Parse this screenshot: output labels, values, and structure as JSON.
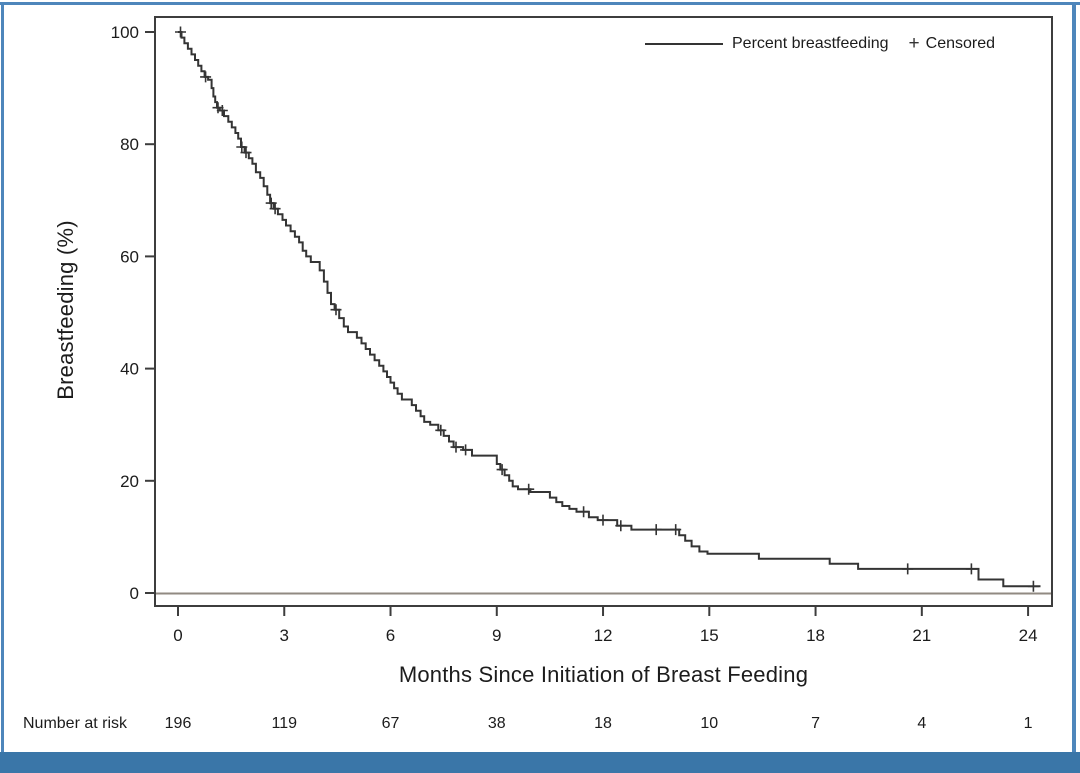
{
  "frame": {
    "border_color": "#4e86bb",
    "bottom_bar_color": "#3a76a8",
    "background": "#ffffff"
  },
  "chart_data": {
    "type": "line",
    "subtype": "kaplan-meier-step-curve",
    "title": "",
    "xlabel": "Months Since Initiation of Breast Feeding",
    "ylabel": "Breastfeeding (%)",
    "x_ticks": [
      0,
      3,
      6,
      9,
      12,
      15,
      18,
      21,
      24
    ],
    "y_ticks": [
      0,
      20,
      40,
      60,
      80,
      100
    ],
    "xlim": [
      -0.65,
      25.2
    ],
    "ylim": [
      -2.5,
      102.5
    ],
    "grid": false,
    "legend_position": "top-right-inside",
    "legend": {
      "series_label": "Percent breastfeeding",
      "censored_label": "Censored"
    },
    "line_color": "#343434",
    "axis_color": "#3d3d3d",
    "baseline": {
      "y": 0,
      "color": "#918a82"
    },
    "series": [
      {
        "name": "Percent breastfeeding",
        "step_points": [
          [
            0,
            100
          ],
          [
            0.1,
            99
          ],
          [
            0.18,
            98
          ],
          [
            0.28,
            97
          ],
          [
            0.38,
            96
          ],
          [
            0.48,
            95
          ],
          [
            0.57,
            94
          ],
          [
            0.66,
            93
          ],
          [
            0.75,
            92
          ],
          [
            0.85,
            91.5
          ],
          [
            0.95,
            90
          ],
          [
            1.0,
            88.5
          ],
          [
            1.05,
            87.5
          ],
          [
            1.1,
            86.5
          ],
          [
            1.18,
            86
          ],
          [
            1.3,
            85
          ],
          [
            1.42,
            84
          ],
          [
            1.52,
            83
          ],
          [
            1.62,
            82
          ],
          [
            1.7,
            81
          ],
          [
            1.78,
            79.5
          ],
          [
            1.88,
            78.5
          ],
          [
            2.0,
            77.5
          ],
          [
            2.1,
            76.5
          ],
          [
            2.2,
            75
          ],
          [
            2.32,
            74
          ],
          [
            2.42,
            72.5
          ],
          [
            2.52,
            71
          ],
          [
            2.6,
            69.5
          ],
          [
            2.7,
            68.5
          ],
          [
            2.82,
            67.5
          ],
          [
            2.95,
            66.5
          ],
          [
            3.05,
            65.5
          ],
          [
            3.18,
            64.5
          ],
          [
            3.3,
            63.5
          ],
          [
            3.42,
            62.5
          ],
          [
            3.52,
            61
          ],
          [
            3.62,
            60
          ],
          [
            3.75,
            59
          ],
          [
            4.0,
            57.5
          ],
          [
            4.12,
            55.5
          ],
          [
            4.22,
            53.5
          ],
          [
            4.32,
            51.5
          ],
          [
            4.42,
            50.5
          ],
          [
            4.55,
            49
          ],
          [
            4.68,
            47.5
          ],
          [
            4.8,
            46.5
          ],
          [
            5.05,
            45.5
          ],
          [
            5.18,
            44.5
          ],
          [
            5.3,
            43.5
          ],
          [
            5.42,
            42.5
          ],
          [
            5.55,
            41.5
          ],
          [
            5.68,
            40.5
          ],
          [
            5.8,
            39.5
          ],
          [
            5.9,
            38.5
          ],
          [
            6.0,
            37.5
          ],
          [
            6.1,
            36.5
          ],
          [
            6.2,
            35.5
          ],
          [
            6.32,
            34.5
          ],
          [
            6.6,
            33.5
          ],
          [
            6.72,
            32.5
          ],
          [
            6.85,
            31.5
          ],
          [
            6.95,
            30.5
          ],
          [
            7.12,
            30
          ],
          [
            7.35,
            29
          ],
          [
            7.5,
            28
          ],
          [
            7.65,
            27
          ],
          [
            7.78,
            26
          ],
          [
            8.05,
            25.5
          ],
          [
            8.3,
            24.5
          ],
          [
            9.0,
            23
          ],
          [
            9.1,
            22
          ],
          [
            9.22,
            21
          ],
          [
            9.35,
            20
          ],
          [
            9.45,
            19
          ],
          [
            9.6,
            18.5
          ],
          [
            9.95,
            18
          ],
          [
            10.5,
            17
          ],
          [
            10.68,
            16.2
          ],
          [
            10.85,
            15.5
          ],
          [
            11.05,
            15
          ],
          [
            11.25,
            14.5
          ],
          [
            11.6,
            13.5
          ],
          [
            11.85,
            13
          ],
          [
            12.4,
            12
          ],
          [
            12.8,
            11.3
          ],
          [
            14.15,
            10.3
          ],
          [
            14.32,
            9.3
          ],
          [
            14.5,
            8.3
          ],
          [
            14.72,
            7.4
          ],
          [
            14.95,
            7
          ],
          [
            16.4,
            6.1
          ],
          [
            18.4,
            5.2
          ],
          [
            19.2,
            4.3
          ],
          [
            22.6,
            2.4
          ],
          [
            23.3,
            1.2
          ]
        ],
        "end_x": 24.35
      }
    ],
    "censored_marks": [
      [
        0.07,
        100
      ],
      [
        0.78,
        92
      ],
      [
        1.13,
        86.5
      ],
      [
        1.25,
        86
      ],
      [
        1.8,
        79.5
      ],
      [
        1.92,
        78.5
      ],
      [
        2.63,
        69.5
      ],
      [
        2.74,
        68.5
      ],
      [
        4.46,
        50.5
      ],
      [
        7.42,
        29
      ],
      [
        7.85,
        26
      ],
      [
        8.12,
        25.5
      ],
      [
        9.15,
        22
      ],
      [
        9.9,
        18.5
      ],
      [
        11.45,
        14.5
      ],
      [
        12.0,
        13
      ],
      [
        12.5,
        12
      ],
      [
        13.5,
        11.3
      ],
      [
        14.05,
        11.3
      ],
      [
        20.6,
        4.3
      ],
      [
        22.4,
        4.3
      ],
      [
        24.15,
        1.2
      ]
    ],
    "number_at_risk": {
      "label": "Number at risk",
      "times": [
        0,
        3,
        6,
        9,
        12,
        15,
        18,
        21,
        24
      ],
      "values": [
        196,
        119,
        67,
        38,
        18,
        10,
        7,
        4,
        1
      ]
    }
  }
}
